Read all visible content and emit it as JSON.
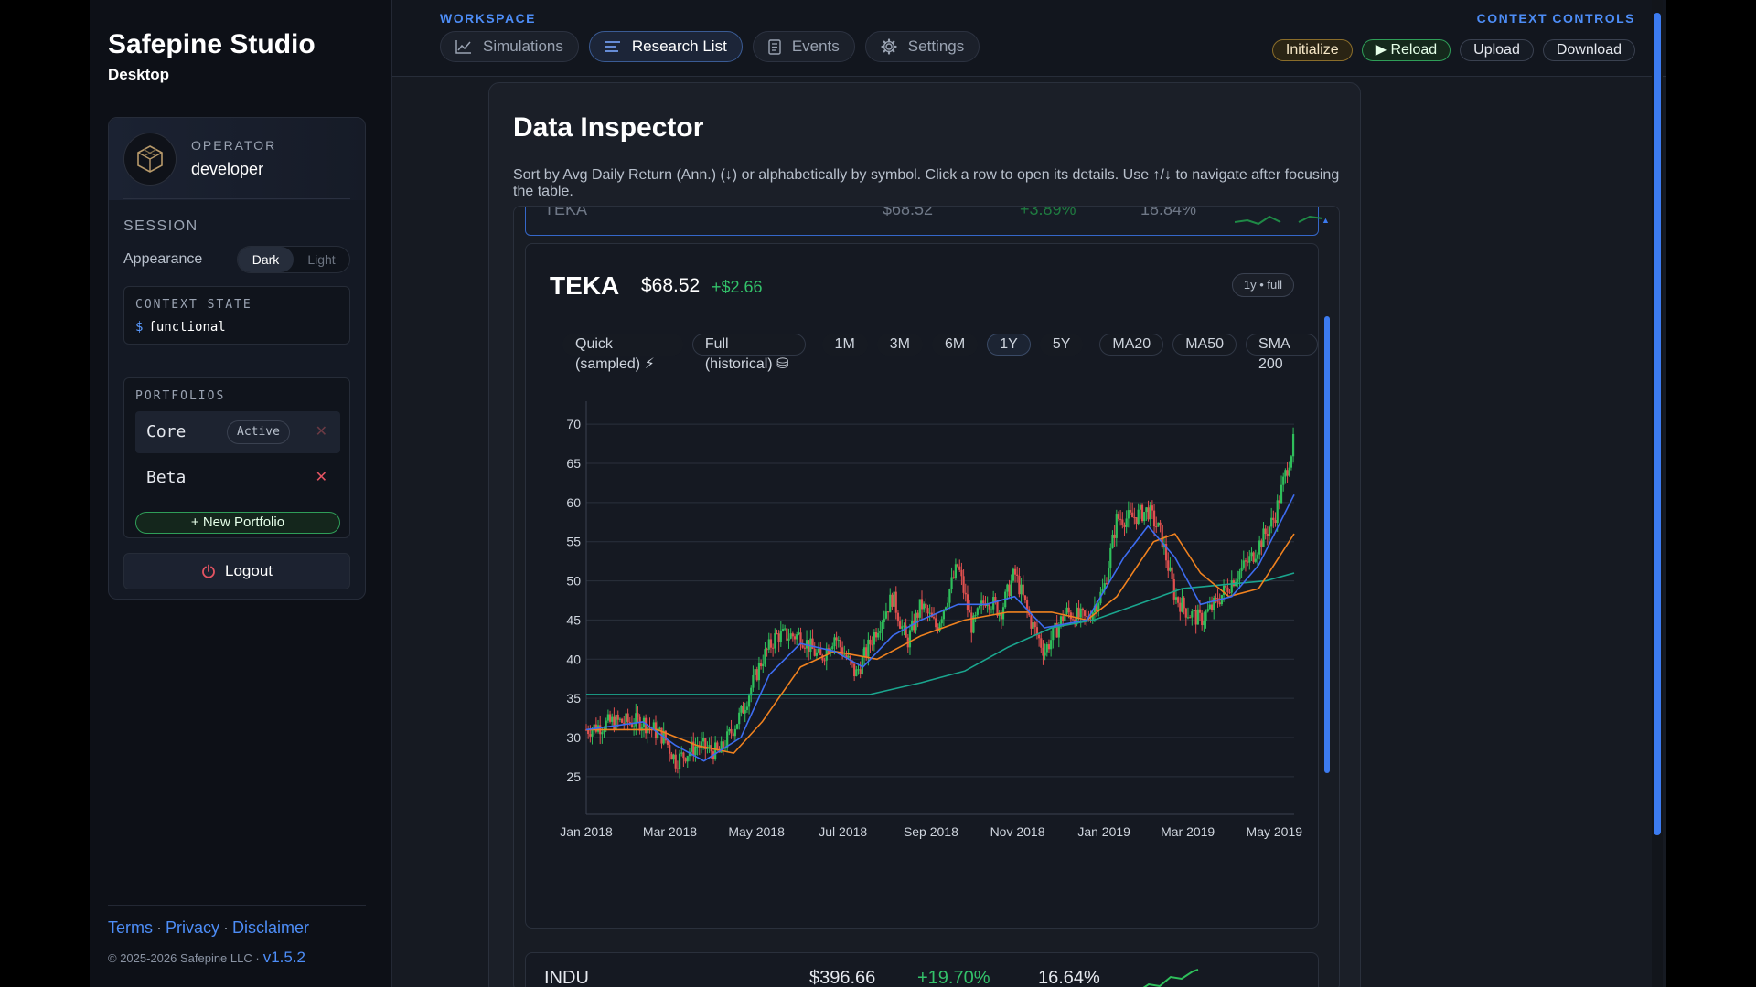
{
  "app": {
    "title": "Safepine Studio",
    "subtitle": "Desktop"
  },
  "operator": {
    "label": "OPERATOR",
    "name": "developer"
  },
  "session": {
    "label": "SESSION",
    "appearance_label": "Appearance",
    "theme_options": [
      "Dark",
      "Light"
    ],
    "theme_selected": "Dark"
  },
  "context_state": {
    "label": "CONTEXT STATE",
    "prompt": "$",
    "value": "functional"
  },
  "portfolios": {
    "label": "PORTFOLIOS",
    "items": [
      {
        "name": "Core",
        "badge": "Active"
      },
      {
        "name": "Beta",
        "badge": ""
      }
    ],
    "new_label": "+ New Portfolio"
  },
  "logout_label": "Logout",
  "footer": {
    "links": [
      "Terms",
      "Privacy",
      "Disclaimer"
    ],
    "copyright": "© 2025-2026 Safepine LLC ·",
    "version": "v1.5.2"
  },
  "workspace": {
    "label": "WORKSPACE",
    "tabs": [
      "Simulations",
      "Research List",
      "Events",
      "Settings"
    ],
    "active_tab": "Research List"
  },
  "context_controls": {
    "label": "CONTEXT CONTROLS",
    "buttons": [
      "Initialize",
      "▶ Reload",
      "Upload",
      "Download"
    ]
  },
  "inspector": {
    "title": "Data Inspector",
    "description": "Sort by Avg Daily Return (Ann.) (↓) or alphabetically by symbol. Click a row to open its details. Use ↑/↓ to navigate after focusing the table."
  },
  "rows": {
    "top": {
      "symbol": "TEKA",
      "price": "$68.52",
      "return": "+3.89%",
      "vol": "18.84%"
    },
    "bottom": {
      "symbol": "INDU",
      "price": "$396.66",
      "return": "+19.70%",
      "vol": "16.64%"
    }
  },
  "detail": {
    "symbol": "TEKA",
    "price": "$68.52",
    "change": "+$2.66",
    "range_badge": "1y • full",
    "mode_pills": [
      "Quick (sampled) ⚡",
      "Full (historical) ⛁"
    ],
    "range_pills": [
      "1M",
      "3M",
      "6M",
      "1Y",
      "5Y"
    ],
    "range_selected": "1Y",
    "indicator_pills": [
      "MA20",
      "MA50",
      "SMA 200"
    ]
  },
  "colors": {
    "up": "#2fbf5b",
    "down": "#e0504f",
    "ma20": "#3d6cf0",
    "ma50": "#f0821f",
    "sma200": "#1aa58e",
    "accent": "#4d8df7"
  },
  "chart_data": {
    "type": "candlestick",
    "title": "",
    "xlabel": "",
    "ylabel": "",
    "ylim": [
      23,
      72
    ],
    "yticks": [
      25,
      30,
      35,
      40,
      45,
      50,
      55,
      60,
      65,
      70
    ],
    "xticks": [
      "Jan 2018",
      "Mar 2018",
      "May 2018",
      "Jul 2018",
      "Sep 2018",
      "Nov 2018",
      "Jan 2019",
      "Mar 2019",
      "May 2019"
    ],
    "x_range": [
      "2018-01-01",
      "2019-05-15"
    ],
    "grid": true,
    "close_path": [
      [
        "2018-01-01",
        31
      ],
      [
        "2018-01-20",
        32
      ],
      [
        "2018-02-10",
        32
      ],
      [
        "2018-02-25",
        30
      ],
      [
        "2018-03-05",
        27
      ],
      [
        "2018-03-20",
        29
      ],
      [
        "2018-04-05",
        28
      ],
      [
        "2018-04-20",
        33
      ],
      [
        "2018-05-05",
        40
      ],
      [
        "2018-05-15",
        43
      ],
      [
        "2018-06-01",
        43
      ],
      [
        "2018-06-15",
        40
      ],
      [
        "2018-06-25",
        43
      ],
      [
        "2018-07-10",
        38
      ],
      [
        "2018-07-25",
        44
      ],
      [
        "2018-08-05",
        48
      ],
      [
        "2018-08-15",
        42
      ],
      [
        "2018-08-25",
        47
      ],
      [
        "2018-09-05",
        44
      ],
      [
        "2018-09-20",
        52
      ],
      [
        "2018-09-30",
        44
      ],
      [
        "2018-10-10",
        48
      ],
      [
        "2018-10-20",
        46
      ],
      [
        "2018-10-30",
        51
      ],
      [
        "2018-11-10",
        45
      ],
      [
        "2018-11-20",
        41
      ],
      [
        "2018-12-05",
        46
      ],
      [
        "2018-12-20",
        45
      ],
      [
        "2019-01-01",
        49
      ],
      [
        "2019-01-10",
        58
      ],
      [
        "2019-01-20",
        58
      ],
      [
        "2019-02-01",
        59
      ],
      [
        "2019-02-10",
        56
      ],
      [
        "2019-02-20",
        48
      ],
      [
        "2019-03-01",
        46
      ],
      [
        "2019-03-10",
        45
      ],
      [
        "2019-03-20",
        47
      ],
      [
        "2019-04-01",
        50
      ],
      [
        "2019-04-15",
        53
      ],
      [
        "2019-05-01",
        58
      ],
      [
        "2019-05-15",
        68
      ]
    ],
    "series": [
      {
        "name": "MA20",
        "values": [
          [
            "2018-01-01",
            31
          ],
          [
            "2018-02-10",
            32
          ],
          [
            "2018-03-05",
            29
          ],
          [
            "2018-03-25",
            27
          ],
          [
            "2018-04-20",
            30
          ],
          [
            "2018-05-10",
            38
          ],
          [
            "2018-06-01",
            42
          ],
          [
            "2018-06-25",
            41
          ],
          [
            "2018-07-15",
            39
          ],
          [
            "2018-08-05",
            43
          ],
          [
            "2018-08-25",
            45
          ],
          [
            "2018-09-20",
            47
          ],
          [
            "2018-10-10",
            47
          ],
          [
            "2018-10-30",
            48
          ],
          [
            "2018-11-20",
            44
          ],
          [
            "2018-12-20",
            45
          ],
          [
            "2019-01-15",
            53
          ],
          [
            "2019-02-01",
            57
          ],
          [
            "2019-02-20",
            53
          ],
          [
            "2019-03-10",
            47
          ],
          [
            "2019-04-01",
            48
          ],
          [
            "2019-04-20",
            52
          ],
          [
            "2019-05-15",
            61
          ]
        ]
      },
      {
        "name": "MA50",
        "values": [
          [
            "2018-01-01",
            31
          ],
          [
            "2018-02-20",
            31
          ],
          [
            "2018-03-20",
            29
          ],
          [
            "2018-04-15",
            28
          ],
          [
            "2018-05-05",
            32
          ],
          [
            "2018-06-01",
            39
          ],
          [
            "2018-06-25",
            41
          ],
          [
            "2018-07-25",
            40
          ],
          [
            "2018-08-25",
            43
          ],
          [
            "2018-09-25",
            45
          ],
          [
            "2018-10-25",
            46
          ],
          [
            "2018-11-25",
            46
          ],
          [
            "2018-12-20",
            45
          ],
          [
            "2019-01-10",
            48
          ],
          [
            "2019-02-05",
            55
          ],
          [
            "2019-02-20",
            56
          ],
          [
            "2019-03-10",
            51
          ],
          [
            "2019-03-30",
            48
          ],
          [
            "2019-04-20",
            49
          ],
          [
            "2019-05-15",
            56
          ]
        ]
      },
      {
        "name": "SMA 200",
        "values": [
          [
            "2018-01-01",
            35.5
          ],
          [
            "2018-07-20",
            35.5
          ],
          [
            "2018-08-25",
            37
          ],
          [
            "2018-09-25",
            38.5
          ],
          [
            "2018-10-25",
            41.5
          ],
          [
            "2018-11-25",
            44
          ],
          [
            "2018-12-25",
            45
          ],
          [
            "2019-01-25",
            47
          ],
          [
            "2019-02-25",
            49
          ],
          [
            "2019-03-25",
            49.5
          ],
          [
            "2019-04-25",
            50
          ],
          [
            "2019-05-15",
            51
          ]
        ]
      }
    ]
  }
}
